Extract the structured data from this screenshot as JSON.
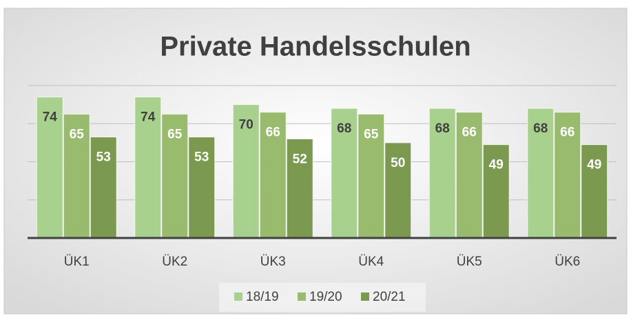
{
  "chart_data": {
    "type": "bar",
    "title": "Private Handelsschulen",
    "categories": [
      "ÜK1",
      "ÜK2",
      "ÜK3",
      "ÜK4",
      "ÜK5",
      "ÜK6"
    ],
    "series": [
      {
        "name": "18/19",
        "color": "#a9d18e",
        "values": [
          74,
          74,
          70,
          68,
          68,
          68
        ]
      },
      {
        "name": "19/20",
        "color": "#98bb6e",
        "values": [
          65,
          65,
          66,
          65,
          66,
          66
        ]
      },
      {
        "name": "20/21",
        "color": "#7b9a50",
        "values": [
          53,
          53,
          52,
          50,
          49,
          49
        ]
      }
    ],
    "ylim": [
      0,
      80
    ],
    "yticks": [
      0,
      20,
      40,
      60,
      80
    ],
    "grid": true
  }
}
